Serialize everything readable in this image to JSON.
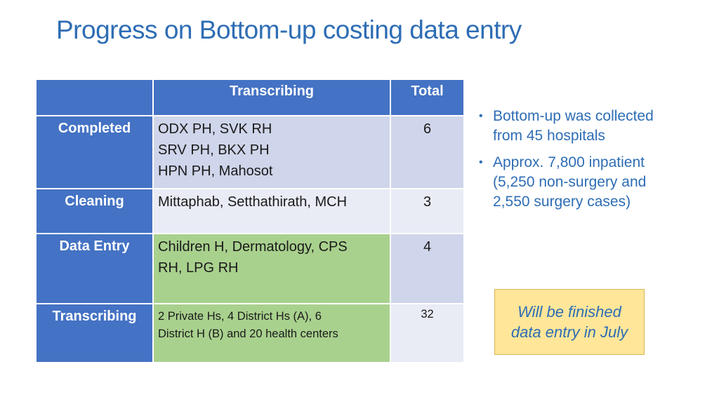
{
  "title": "Progress on Bottom-up costing data entry",
  "table": {
    "headers": [
      "",
      "Transcribing",
      "Total"
    ],
    "rows": [
      {
        "label": "Completed",
        "lines": [
          "ODX PH, SVK RH",
          "SRV PH, BKX PH",
          "HPN PH, Mahosot"
        ],
        "total": "6"
      },
      {
        "label": "Cleaning",
        "lines": [
          "Mittaphab, Setthathirath, MCH"
        ],
        "total": "3"
      },
      {
        "label": "Data Entry",
        "lines": [
          "Children H, Dermatology, CPS",
          "RH, LPG RH"
        ],
        "total": "4"
      },
      {
        "label": "Transcribing",
        "lines": [
          "2 Private Hs, 4 District Hs (A), 6",
          "District H (B) and 20 health centers"
        ],
        "total": "32"
      }
    ]
  },
  "bullets": [
    {
      "lines": [
        "Bottom-up was collected",
        "from 45 hospitals"
      ]
    },
    {
      "lines": [
        "Approx. 7,800 inpatient",
        "(5,250 non-surgery and",
        "2,550 surgery cases)"
      ]
    }
  ],
  "note": {
    "lines": [
      "Will be finished",
      "data entry in July"
    ]
  },
  "colors": {
    "title": "#2e6db4",
    "header": "#4472c4",
    "lavender": "#cfd5ea",
    "green": "#a9d18e",
    "note_bg": "#ffe699"
  }
}
